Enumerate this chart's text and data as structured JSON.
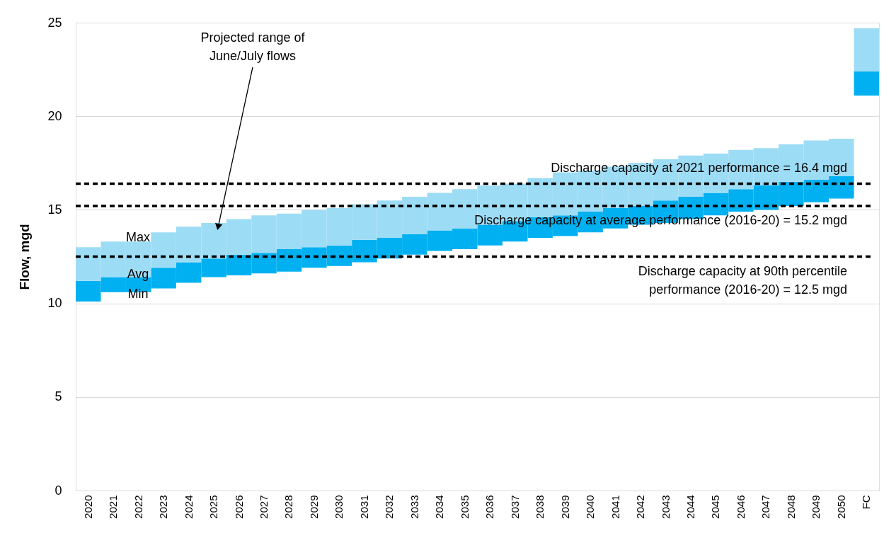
{
  "chart_data": {
    "type": "bar",
    "ylabel": "Flow, mgd",
    "categories": [
      "2020",
      "2021",
      "2022",
      "2023",
      "2024",
      "2025",
      "2026",
      "2027",
      "2028",
      "2029",
      "2030",
      "2031",
      "2032",
      "2033",
      "2034",
      "2035",
      "2036",
      "2037",
      "2038",
      "2039",
      "2040",
      "2041",
      "2042",
      "2043",
      "2044",
      "2045",
      "2046",
      "2047",
      "2048",
      "2049",
      "2050",
      "FC"
    ],
    "series": [
      {
        "color": "#00b0f0",
        "base": [
          10.1,
          10.6,
          10.6,
          10.8,
          11.1,
          11.4,
          11.5,
          11.6,
          11.7,
          11.9,
          12.0,
          12.2,
          12.4,
          12.6,
          12.8,
          12.9,
          13.1,
          13.3,
          13.5,
          13.6,
          13.8,
          14.0,
          14.2,
          14.3,
          14.5,
          14.7,
          14.9,
          15.0,
          15.2,
          15.4,
          15.6,
          21.1
        ],
        "values": [
          1.1,
          0.8,
          0.8,
          1.1,
          1.1,
          1.0,
          1.1,
          1.1,
          1.2,
          1.1,
          1.1,
          1.2,
          1.1,
          1.1,
          1.1,
          1.1,
          1.1,
          1.1,
          1.1,
          1.1,
          1.1,
          1.1,
          1.0,
          1.2,
          1.2,
          1.2,
          1.2,
          1.3,
          1.3,
          1.2,
          1.2,
          1.3
        ]
      },
      {
        "color": "#9ddcf5",
        "base": [
          11.2,
          11.4,
          11.4,
          11.9,
          12.2,
          12.4,
          12.6,
          12.7,
          12.9,
          13.0,
          13.1,
          13.4,
          13.5,
          13.7,
          13.9,
          14.0,
          14.2,
          14.4,
          14.6,
          14.7,
          14.9,
          15.1,
          15.2,
          15.5,
          15.7,
          15.9,
          16.1,
          16.3,
          16.5,
          16.6,
          16.8,
          22.4
        ],
        "values": [
          1.8,
          1.9,
          1.9,
          1.9,
          1.9,
          1.9,
          1.9,
          2.0,
          1.9,
          2.0,
          2.0,
          1.9,
          2.0,
          2.0,
          2.0,
          2.1,
          2.1,
          2.0,
          2.1,
          2.3,
          2.2,
          2.2,
          2.3,
          2.2,
          2.2,
          2.1,
          2.1,
          2.0,
          2.0,
          2.1,
          2.0,
          2.3
        ]
      }
    ],
    "ylim": [
      0,
      25
    ],
    "yticks": [
      0,
      5,
      10,
      15,
      20,
      25
    ],
    "grid": "y",
    "ref_lines": [
      {
        "axis": "y",
        "value": 16.4,
        "label": "Discharge capacity at 2021 performance = 16.4 mgd",
        "color": "#000000",
        "line_style": "dashed"
      },
      {
        "axis": "y",
        "value": 15.2,
        "label": "Discharge capacity at average performance (2016-20) = 15.2 mgd",
        "color": "#000000",
        "line_style": "dashed"
      },
      {
        "axis": "y",
        "value": 12.5,
        "label": "Discharge capacity at 90th percentile\nperformance (2016-20) = 12.5 mgd",
        "color": "#000000",
        "line_style": "dashed"
      }
    ],
    "annotations": [
      "Projected range of\nJune/July flows",
      "Max",
      "Avg",
      "Min"
    ]
  }
}
